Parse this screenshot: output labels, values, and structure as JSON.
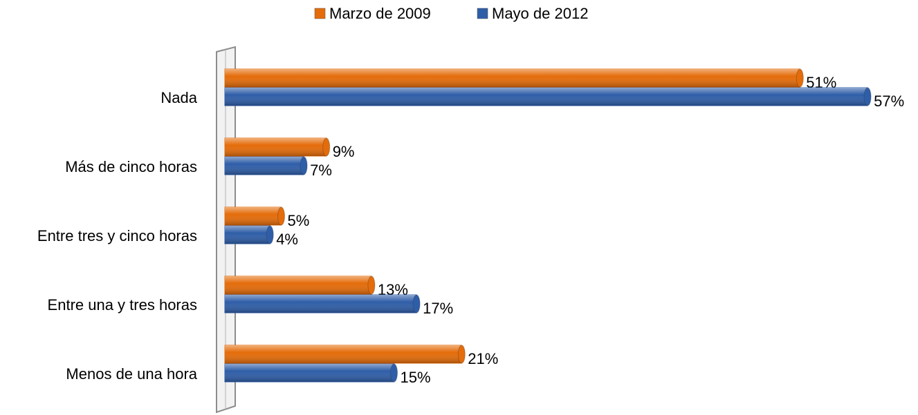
{
  "chart_data": {
    "type": "bar",
    "orientation": "horizontal",
    "categories": [
      "Nada",
      "Más de cinco horas",
      "Entre tres y cinco horas",
      "Entre una y tres horas",
      "Menos de una hora"
    ],
    "series": [
      {
        "name": "Marzo de 2009",
        "color": "#e46c0a",
        "values": [
          51,
          9,
          5,
          13,
          21
        ],
        "value_labels": [
          "51%",
          "9%",
          "5%",
          "13%",
          "21%"
        ]
      },
      {
        "name": "Mayo de 2012",
        "color": "#2f5ea8",
        "values": [
          57,
          7,
          4,
          17,
          15
        ],
        "value_labels": [
          "57%",
          "7%",
          "4%",
          "17%",
          "15%"
        ]
      }
    ],
    "xlim": [
      0,
      60
    ],
    "legend": "top"
  }
}
